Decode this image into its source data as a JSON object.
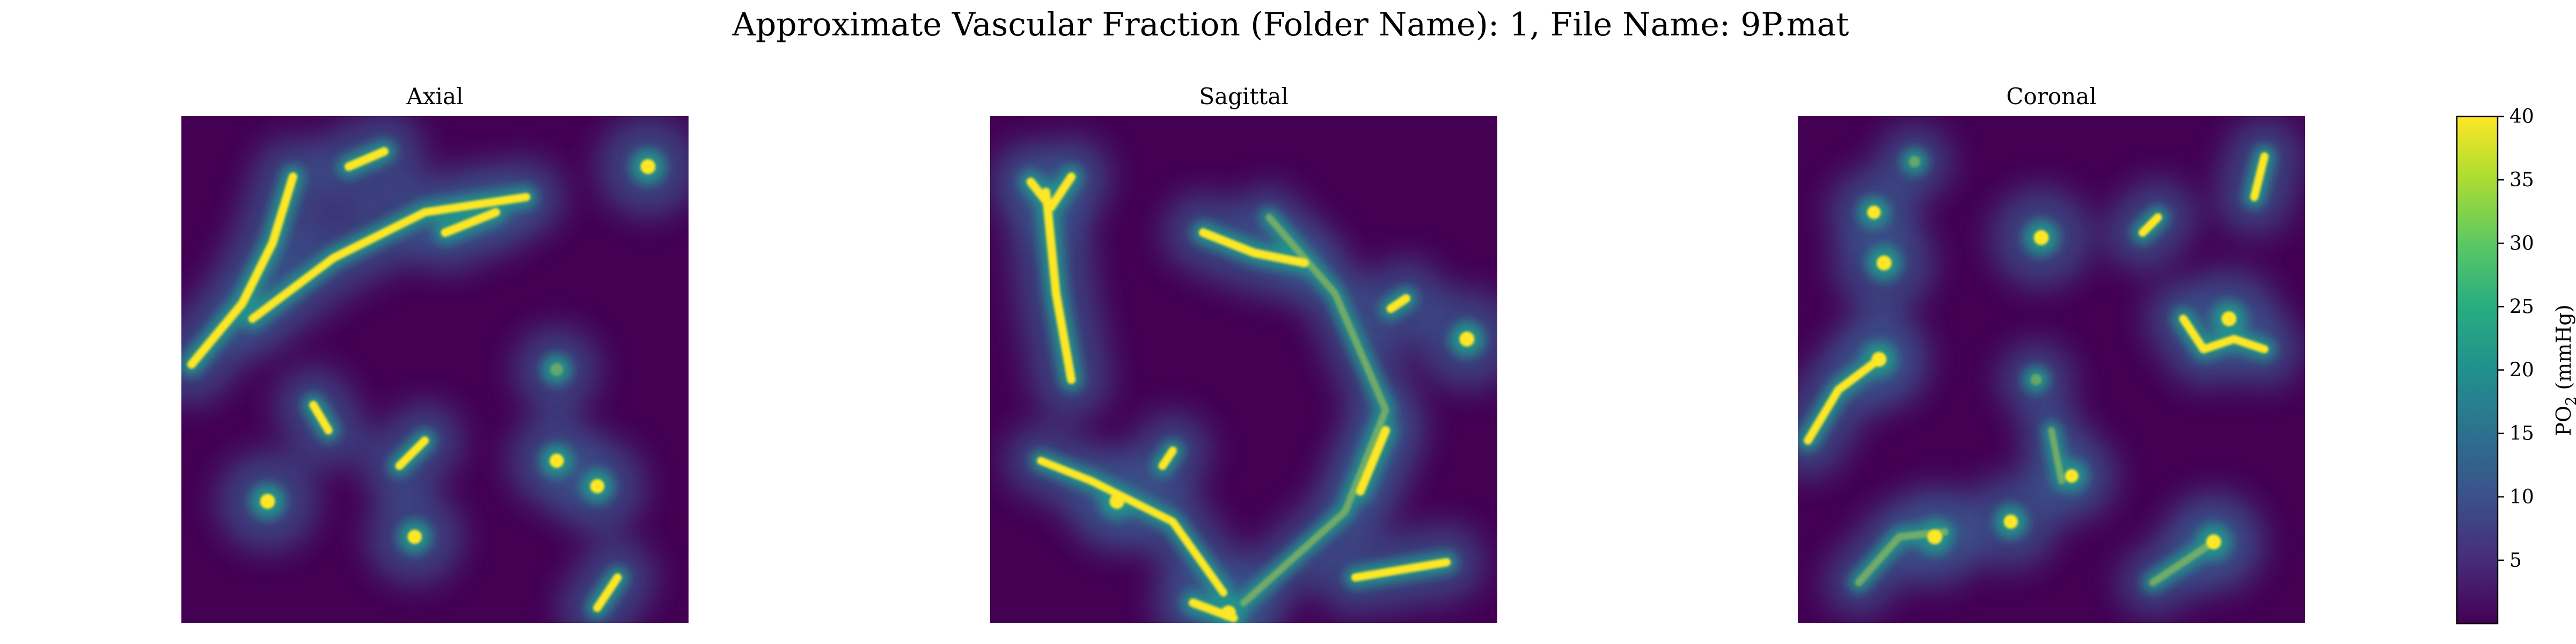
{
  "figure": {
    "title": "Approximate Vascular Fraction (Folder Name): 1, File Name: 9P.mat"
  },
  "chart_data": {
    "type": "heatmap",
    "title": "Approximate Vascular Fraction (Folder Name): 1, File Name: 9P.mat",
    "colormap": "viridis",
    "colors": {
      "low": "#440154",
      "mid": "#21918c",
      "high": "#fde725"
    },
    "panels": [
      {
        "title": "Axial",
        "vessels": [
          {
            "path": [
              [
                0.02,
                0.49
              ],
              [
                0.12,
                0.37
              ],
              [
                0.18,
                0.25
              ],
              [
                0.22,
                0.12
              ]
            ],
            "intensity": 1.0
          },
          {
            "path": [
              [
                0.14,
                0.4
              ],
              [
                0.3,
                0.28
              ],
              [
                0.48,
                0.19
              ],
              [
                0.68,
                0.16
              ]
            ],
            "intensity": 0.9
          },
          {
            "path": [
              [
                0.33,
                0.1
              ],
              [
                0.4,
                0.07
              ]
            ],
            "intensity": 1.0
          },
          {
            "path": [
              [
                0.52,
                0.23
              ],
              [
                0.62,
                0.19
              ]
            ],
            "intensity": 1.0
          },
          {
            "path": [
              [
                0.26,
                0.57
              ],
              [
                0.29,
                0.62
              ]
            ],
            "intensity": 0.9
          },
          {
            "path": [
              [
                0.43,
                0.69
              ],
              [
                0.48,
                0.64
              ]
            ],
            "intensity": 0.9
          },
          {
            "path": [
              [
                0.82,
                0.97
              ],
              [
                0.86,
                0.91
              ]
            ],
            "intensity": 0.9
          }
        ],
        "spots": [
          {
            "x": 0.92,
            "y": 0.1,
            "intensity": 1.0
          },
          {
            "x": 0.74,
            "y": 0.5,
            "intensity": 0.7
          },
          {
            "x": 0.17,
            "y": 0.76,
            "intensity": 1.0
          },
          {
            "x": 0.46,
            "y": 0.83,
            "intensity": 0.9
          },
          {
            "x": 0.74,
            "y": 0.68,
            "intensity": 0.9
          },
          {
            "x": 0.82,
            "y": 0.73,
            "intensity": 0.9
          }
        ]
      },
      {
        "title": "Sagittal",
        "vessels": [
          {
            "path": [
              [
                0.11,
                0.15
              ],
              [
                0.13,
                0.35
              ],
              [
                0.16,
                0.52
              ]
            ],
            "intensity": 1.0
          },
          {
            "path": [
              [
                0.08,
                0.13
              ],
              [
                0.12,
                0.18
              ],
              [
                0.16,
                0.12
              ]
            ],
            "intensity": 1.0
          },
          {
            "path": [
              [
                0.42,
                0.23
              ],
              [
                0.52,
                0.27
              ],
              [
                0.62,
                0.29
              ]
            ],
            "intensity": 1.0
          },
          {
            "path": [
              [
                0.55,
                0.2
              ],
              [
                0.68,
                0.35
              ],
              [
                0.78,
                0.58
              ],
              [
                0.7,
                0.78
              ],
              [
                0.5,
                0.96
              ]
            ],
            "intensity": 0.6
          },
          {
            "path": [
              [
                0.78,
                0.62
              ],
              [
                0.73,
                0.74
              ]
            ],
            "intensity": 1.0
          },
          {
            "path": [
              [
                0.79,
                0.38
              ],
              [
                0.82,
                0.36
              ]
            ],
            "intensity": 1.0
          },
          {
            "path": [
              [
                0.46,
                0.94
              ],
              [
                0.36,
                0.8
              ],
              [
                0.2,
                0.72
              ],
              [
                0.1,
                0.68
              ]
            ],
            "intensity": 0.8
          },
          {
            "path": [
              [
                0.4,
                0.96
              ],
              [
                0.48,
                0.99
              ]
            ],
            "intensity": 1.0
          },
          {
            "path": [
              [
                0.72,
                0.91
              ],
              [
                0.9,
                0.88
              ]
            ],
            "intensity": 0.9
          },
          {
            "path": [
              [
                0.34,
                0.69
              ],
              [
                0.36,
                0.66
              ]
            ],
            "intensity": 0.9
          }
        ],
        "spots": [
          {
            "x": 0.25,
            "y": 0.76,
            "intensity": 1.0
          },
          {
            "x": 0.94,
            "y": 0.44,
            "intensity": 1.0
          },
          {
            "x": 0.47,
            "y": 0.98,
            "intensity": 1.0
          }
        ]
      },
      {
        "title": "Coronal",
        "vessels": [
          {
            "path": [
              [
                0.02,
                0.64
              ],
              [
                0.08,
                0.54
              ],
              [
                0.16,
                0.48
              ]
            ],
            "intensity": 0.9
          },
          {
            "path": [
              [
                0.12,
                0.92
              ],
              [
                0.2,
                0.83
              ],
              [
                0.29,
                0.82
              ]
            ],
            "intensity": 0.7
          },
          {
            "path": [
              [
                0.76,
                0.4
              ],
              [
                0.8,
                0.46
              ],
              [
                0.86,
                0.44
              ],
              [
                0.92,
                0.46
              ]
            ],
            "intensity": 0.9
          },
          {
            "path": [
              [
                0.7,
                0.92
              ],
              [
                0.82,
                0.84
              ]
            ],
            "intensity": 0.7
          },
          {
            "path": [
              [
                0.9,
                0.16
              ],
              [
                0.92,
                0.08
              ]
            ],
            "intensity": 0.9
          },
          {
            "path": [
              [
                0.68,
                0.23
              ],
              [
                0.71,
                0.2
              ]
            ],
            "intensity": 0.9
          },
          {
            "path": [
              [
                0.5,
                0.62
              ],
              [
                0.52,
                0.72
              ]
            ],
            "intensity": 0.5
          }
        ],
        "spots": [
          {
            "x": 0.16,
            "y": 0.48,
            "intensity": 1.0
          },
          {
            "x": 0.17,
            "y": 0.29,
            "intensity": 1.0
          },
          {
            "x": 0.15,
            "y": 0.19,
            "intensity": 0.8
          },
          {
            "x": 0.48,
            "y": 0.24,
            "intensity": 1.0
          },
          {
            "x": 0.85,
            "y": 0.4,
            "intensity": 1.0
          },
          {
            "x": 0.27,
            "y": 0.83,
            "intensity": 1.0
          },
          {
            "x": 0.42,
            "y": 0.8,
            "intensity": 0.9
          },
          {
            "x": 0.82,
            "y": 0.84,
            "intensity": 1.0
          },
          {
            "x": 0.54,
            "y": 0.71,
            "intensity": 0.8
          },
          {
            "x": 0.47,
            "y": 0.52,
            "intensity": 0.5
          },
          {
            "x": 0.23,
            "y": 0.09,
            "intensity": 0.5
          }
        ]
      }
    ],
    "colorbar": {
      "label": "PO",
      "label_subscript": "2",
      "label_suffix": " (mmHg)",
      "range": [
        0,
        40
      ],
      "ticks": [
        5,
        10,
        15,
        20,
        25,
        30,
        35,
        40
      ],
      "tick_labels": [
        "5",
        "10",
        "15",
        "20",
        "25",
        "30",
        "35",
        "40"
      ]
    }
  }
}
